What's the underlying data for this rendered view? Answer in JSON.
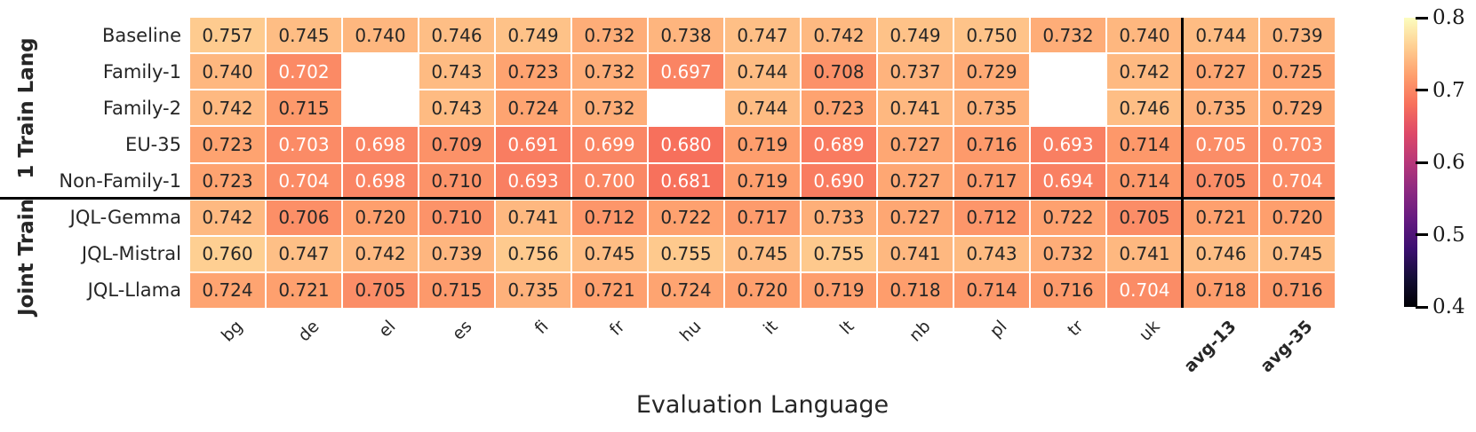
{
  "chart_data": {
    "type": "heatmap",
    "xlabel": "Evaluation Language",
    "ylabel": "",
    "vmin": 0.4,
    "vmax": 0.8,
    "colormap": "magma",
    "columns": [
      "bg",
      "de",
      "el",
      "es",
      "fi",
      "fr",
      "hu",
      "it",
      "lt",
      "nb",
      "pl",
      "tr",
      "uk",
      "avg-13",
      "avg-35"
    ],
    "bold_columns": [
      "avg-13",
      "avg-35"
    ],
    "row_groups": [
      {
        "label": "1 Train Lang",
        "row_start": 0,
        "row_end": 4
      },
      {
        "label": "Joint Train",
        "row_start": 5,
        "row_end": 7
      }
    ],
    "rows": [
      {
        "label": "Baseline",
        "values": [
          0.757,
          0.745,
          0.74,
          0.746,
          0.749,
          0.732,
          0.738,
          0.747,
          0.742,
          0.749,
          0.75,
          0.732,
          0.74,
          0.744,
          0.739
        ],
        "white_cols": []
      },
      {
        "label": "Family-1",
        "values": [
          0.74,
          0.702,
          null,
          0.743,
          0.723,
          0.732,
          0.697,
          0.744,
          0.708,
          0.737,
          0.729,
          null,
          0.742,
          0.727,
          0.725
        ],
        "white_cols": [
          1,
          6
        ]
      },
      {
        "label": "Family-2",
        "values": [
          0.742,
          0.715,
          null,
          0.743,
          0.724,
          0.732,
          null,
          0.744,
          0.723,
          0.741,
          0.735,
          null,
          0.746,
          0.735,
          0.729
        ],
        "white_cols": []
      },
      {
        "label": "EU-35",
        "values": [
          0.723,
          0.703,
          0.698,
          0.709,
          0.691,
          0.699,
          0.68,
          0.719,
          0.689,
          0.727,
          0.716,
          0.693,
          0.714,
          0.705,
          0.703
        ],
        "white_cols": [
          1,
          2,
          4,
          5,
          6,
          8,
          11,
          13,
          14
        ]
      },
      {
        "label": "Non-Family-1",
        "values": [
          0.723,
          0.704,
          0.698,
          0.71,
          0.693,
          0.7,
          0.681,
          0.719,
          0.69,
          0.727,
          0.717,
          0.694,
          0.714,
          0.705,
          0.704
        ],
        "white_cols": [
          1,
          2,
          4,
          5,
          6,
          8,
          11,
          14
        ]
      },
      {
        "label": "JQL-Gemma",
        "values": [
          0.742,
          0.706,
          0.72,
          0.71,
          0.741,
          0.712,
          0.722,
          0.717,
          0.733,
          0.727,
          0.712,
          0.722,
          0.705,
          0.721,
          0.72
        ],
        "white_cols": []
      },
      {
        "label": "JQL-Mistral",
        "values": [
          0.76,
          0.747,
          0.742,
          0.739,
          0.756,
          0.745,
          0.755,
          0.745,
          0.755,
          0.741,
          0.743,
          0.732,
          0.741,
          0.746,
          0.745
        ],
        "white_cols": []
      },
      {
        "label": "JQL-Llama",
        "values": [
          0.724,
          0.721,
          0.705,
          0.715,
          0.735,
          0.721,
          0.724,
          0.72,
          0.719,
          0.718,
          0.714,
          0.716,
          0.704,
          0.718,
          0.716
        ],
        "white_cols": [
          12
        ]
      }
    ],
    "colorbar": {
      "tick_labels": [
        "0.8",
        "0.7",
        "0.6",
        "0.5",
        "0.4"
      ],
      "tick_values": [
        0.8,
        0.7,
        0.6,
        0.5,
        0.4
      ]
    }
  }
}
